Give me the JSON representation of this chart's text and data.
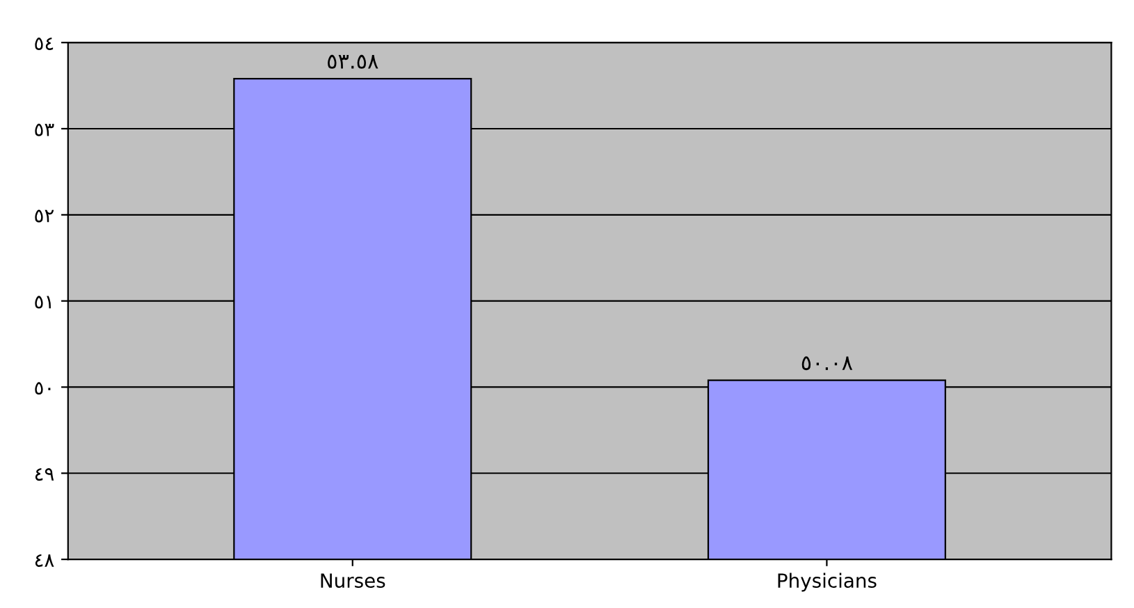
{
  "chart_data": {
    "type": "bar",
    "categories": [
      "Nurses",
      "Physicians"
    ],
    "values": [
      53.58,
      50.08
    ],
    "value_labels": [
      "٥٣.٥٨",
      "٥٠.٠٨"
    ],
    "color": "#9999ff",
    "ylim": [
      48,
      54
    ],
    "yticks": [
      {
        "value": 48,
        "label": "٤٨"
      },
      {
        "value": 49,
        "label": "٤٩"
      },
      {
        "value": 50,
        "label": "٥٠"
      },
      {
        "value": 51,
        "label": "٥١"
      },
      {
        "value": 52,
        "label": "٥٢"
      },
      {
        "value": 53,
        "label": "٥٣"
      },
      {
        "value": 54,
        "label": "٥٤"
      }
    ],
    "grid": "y"
  }
}
